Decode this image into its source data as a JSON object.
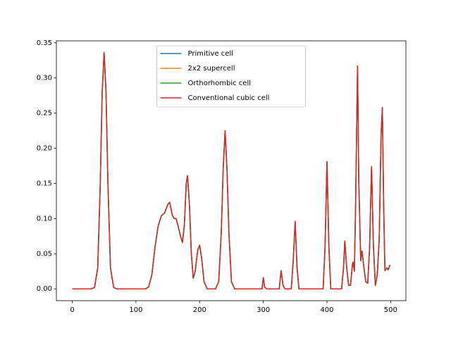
{
  "chart_data": {
    "type": "line",
    "x": [
      0,
      30,
      35,
      40,
      44,
      47,
      50,
      53,
      56,
      60,
      65,
      70,
      115,
      120,
      125,
      130,
      135,
      140,
      145,
      150,
      153,
      157,
      160,
      163,
      166,
      170,
      173,
      176,
      179,
      181,
      184,
      187,
      190,
      193,
      197,
      200,
      203,
      207,
      212,
      225,
      230,
      234,
      237,
      240,
      243,
      246,
      250,
      255,
      298,
      300,
      302,
      305,
      325,
      328,
      331,
      334,
      344,
      347,
      350,
      353,
      356,
      394,
      397,
      400,
      403,
      406,
      423,
      426,
      428,
      431,
      434,
      437,
      440,
      441,
      443,
      445,
      448,
      450,
      453,
      455,
      458,
      461,
      464,
      467,
      470,
      473,
      476,
      479,
      482,
      485,
      487,
      489,
      491,
      494,
      496,
      499
    ],
    "series": [
      {
        "name": "Primitive cell",
        "color": "#1f77b4",
        "values": [
          0,
          0,
          0.002,
          0.03,
          0.15,
          0.28,
          0.336,
          0.28,
          0.15,
          0.03,
          0.002,
          0,
          0,
          0.003,
          0.02,
          0.06,
          0.09,
          0.104,
          0.108,
          0.12,
          0.123,
          0.105,
          0.1,
          0.1,
          0.09,
          0.075,
          0.066,
          0.09,
          0.15,
          0.161,
          0.12,
          0.05,
          0.015,
          0.025,
          0.055,
          0.062,
          0.045,
          0.01,
          0,
          0,
          0.01,
          0.08,
          0.17,
          0.225,
          0.17,
          0.08,
          0.01,
          0,
          0,
          0.016,
          0.003,
          0,
          0,
          0.026,
          0.005,
          0,
          0,
          0.04,
          0.096,
          0.03,
          0,
          0,
          0.06,
          0.181,
          0.06,
          0,
          0,
          0.03,
          0.068,
          0.03,
          0.005,
          0.005,
          0.035,
          0.038,
          0.025,
          0.12,
          0.317,
          0.15,
          0.04,
          0.054,
          0.03,
          0.01,
          0.008,
          0.06,
          0.174,
          0.06,
          0.005,
          0.02,
          0.07,
          0.22,
          0.258,
          0.12,
          0.026,
          0.03,
          0.027,
          0.034
        ]
      },
      {
        "name": "2x2 supercell",
        "color": "#ff7f0e",
        "values": [
          0,
          0,
          0.002,
          0.03,
          0.15,
          0.28,
          0.336,
          0.28,
          0.15,
          0.03,
          0.002,
          0,
          0,
          0.003,
          0.02,
          0.06,
          0.09,
          0.104,
          0.108,
          0.12,
          0.123,
          0.105,
          0.1,
          0.1,
          0.09,
          0.075,
          0.066,
          0.09,
          0.15,
          0.161,
          0.12,
          0.05,
          0.015,
          0.025,
          0.055,
          0.062,
          0.045,
          0.01,
          0,
          0,
          0.01,
          0.08,
          0.17,
          0.225,
          0.17,
          0.08,
          0.01,
          0,
          0,
          0.016,
          0.003,
          0,
          0,
          0.026,
          0.005,
          0,
          0,
          0.04,
          0.096,
          0.03,
          0,
          0,
          0.06,
          0.181,
          0.06,
          0,
          0,
          0.03,
          0.068,
          0.03,
          0.005,
          0.005,
          0.035,
          0.038,
          0.025,
          0.12,
          0.317,
          0.15,
          0.04,
          0.054,
          0.03,
          0.01,
          0.008,
          0.06,
          0.174,
          0.06,
          0.005,
          0.02,
          0.07,
          0.22,
          0.258,
          0.12,
          0.026,
          0.03,
          0.027,
          0.034
        ]
      },
      {
        "name": "Orthorhombic cell",
        "color": "#2ca02c",
        "values": [
          0,
          0,
          0.002,
          0.03,
          0.15,
          0.28,
          0.336,
          0.28,
          0.15,
          0.03,
          0.002,
          0,
          0,
          0.003,
          0.02,
          0.06,
          0.09,
          0.104,
          0.108,
          0.12,
          0.123,
          0.105,
          0.1,
          0.1,
          0.09,
          0.075,
          0.066,
          0.09,
          0.15,
          0.161,
          0.12,
          0.05,
          0.015,
          0.025,
          0.055,
          0.062,
          0.045,
          0.01,
          0,
          0,
          0.01,
          0.08,
          0.17,
          0.225,
          0.17,
          0.08,
          0.01,
          0,
          0,
          0.016,
          0.003,
          0,
          0,
          0.026,
          0.005,
          0,
          0,
          0.04,
          0.096,
          0.03,
          0,
          0,
          0.06,
          0.181,
          0.06,
          0,
          0,
          0.03,
          0.068,
          0.03,
          0.005,
          0.005,
          0.035,
          0.038,
          0.025,
          0.12,
          0.317,
          0.15,
          0.04,
          0.054,
          0.03,
          0.01,
          0.008,
          0.06,
          0.174,
          0.06,
          0.005,
          0.02,
          0.07,
          0.22,
          0.258,
          0.12,
          0.026,
          0.03,
          0.027,
          0.034
        ]
      },
      {
        "name": "Conventional cubic cell",
        "color": "#d62728",
        "values": [
          0,
          0,
          0.002,
          0.03,
          0.15,
          0.28,
          0.336,
          0.28,
          0.15,
          0.03,
          0.002,
          0,
          0,
          0.003,
          0.02,
          0.06,
          0.09,
          0.104,
          0.108,
          0.12,
          0.123,
          0.105,
          0.1,
          0.1,
          0.09,
          0.075,
          0.066,
          0.09,
          0.15,
          0.161,
          0.12,
          0.05,
          0.015,
          0.025,
          0.055,
          0.062,
          0.045,
          0.01,
          0,
          0,
          0.01,
          0.08,
          0.17,
          0.225,
          0.17,
          0.08,
          0.01,
          0,
          0,
          0.016,
          0.003,
          0,
          0,
          0.026,
          0.005,
          0,
          0,
          0.04,
          0.096,
          0.03,
          0,
          0,
          0.06,
          0.181,
          0.06,
          0,
          0,
          0.03,
          0.068,
          0.03,
          0.005,
          0.005,
          0.035,
          0.038,
          0.025,
          0.12,
          0.317,
          0.15,
          0.04,
          0.054,
          0.03,
          0.01,
          0.008,
          0.06,
          0.174,
          0.06,
          0.005,
          0.02,
          0.07,
          0.22,
          0.258,
          0.12,
          0.026,
          0.03,
          0.027,
          0.034
        ]
      }
    ],
    "xlim": [
      -24.95,
      523.95
    ],
    "ylim": [
      -0.0168,
      0.3528
    ],
    "xticks": [
      0,
      100,
      200,
      300,
      400,
      500
    ],
    "yticks": [
      {
        "value": 0,
        "label": "0.00"
      },
      {
        "value": 0.05,
        "label": "0.05"
      },
      {
        "value": 0.1,
        "label": "0.10"
      },
      {
        "value": 0.15,
        "label": "0.15"
      },
      {
        "value": 0.2,
        "label": "0.20"
      },
      {
        "value": 0.25,
        "label": "0.25"
      },
      {
        "value": 0.3,
        "label": "0.30"
      },
      {
        "value": 0.35,
        "label": "0.35"
      }
    ],
    "legend": "upper center",
    "grid": false
  }
}
